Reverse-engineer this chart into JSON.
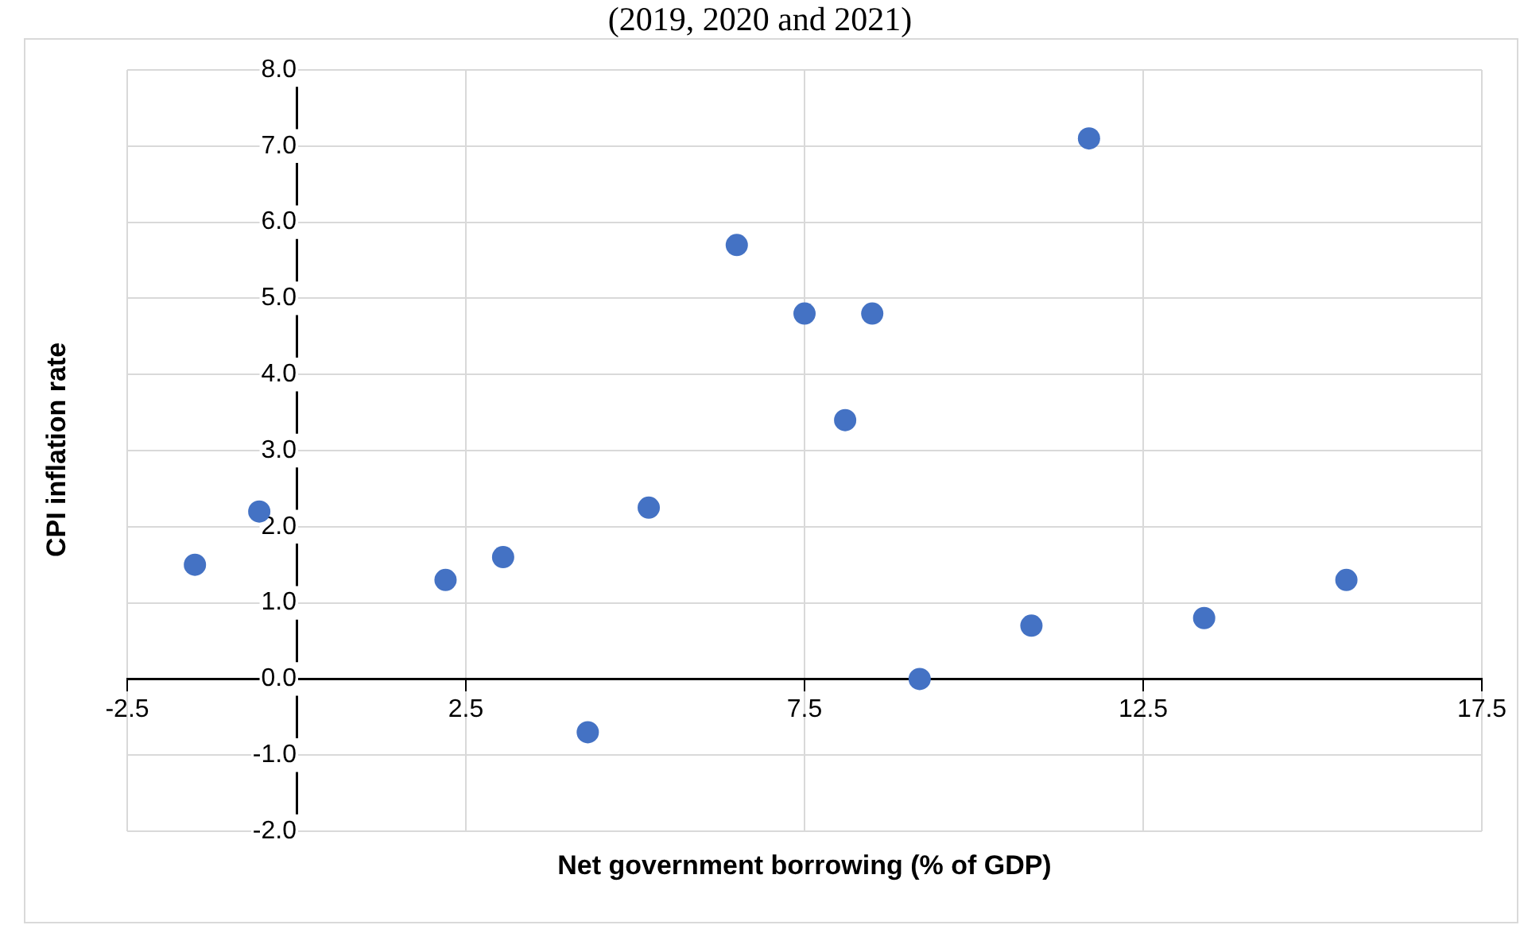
{
  "chart_data": {
    "type": "scatter",
    "title": "(2019, 2020 and 2021)",
    "xlabel": "Net government borrowing (% of GDP)",
    "ylabel": "CPI inflation rate",
    "x": [
      -1.5,
      -0.55,
      2.2,
      3.05,
      4.3,
      5.2,
      6.5,
      7.5,
      8.1,
      8.5,
      9.2,
      10.85,
      11.7,
      13.4,
      15.5
    ],
    "series": [
      {
        "color": "#4472c4",
        "values": [
          1.5,
          2.2,
          1.3,
          1.6,
          -0.7,
          2.25,
          5.7,
          4.8,
          3.4,
          4.8,
          0.0,
          0.7,
          7.1,
          0.8,
          1.3
        ]
      }
    ],
    "xlim": [
      -2.5,
      17.5
    ],
    "xticks": [
      -2.5,
      2.5,
      7.5,
      12.5,
      17.5
    ],
    "ylim": [
      -2,
      8
    ],
    "yticks": [
      {
        "value": -2,
        "label": "-2.0"
      },
      {
        "value": -1,
        "label": "-1.0"
      },
      {
        "value": 0,
        "label": "0.0"
      },
      {
        "value": 1,
        "label": "1.0"
      },
      {
        "value": 2,
        "label": "2.0"
      },
      {
        "value": 3,
        "label": "3.0"
      },
      {
        "value": 4,
        "label": "4.0"
      },
      {
        "value": 5,
        "label": "5.0"
      },
      {
        "value": 6,
        "label": "6.0"
      },
      {
        "value": 7,
        "label": "7.0"
      },
      {
        "value": 8,
        "label": "8.0"
      }
    ],
    "grid": true,
    "legend": false,
    "marker": "circle"
  }
}
